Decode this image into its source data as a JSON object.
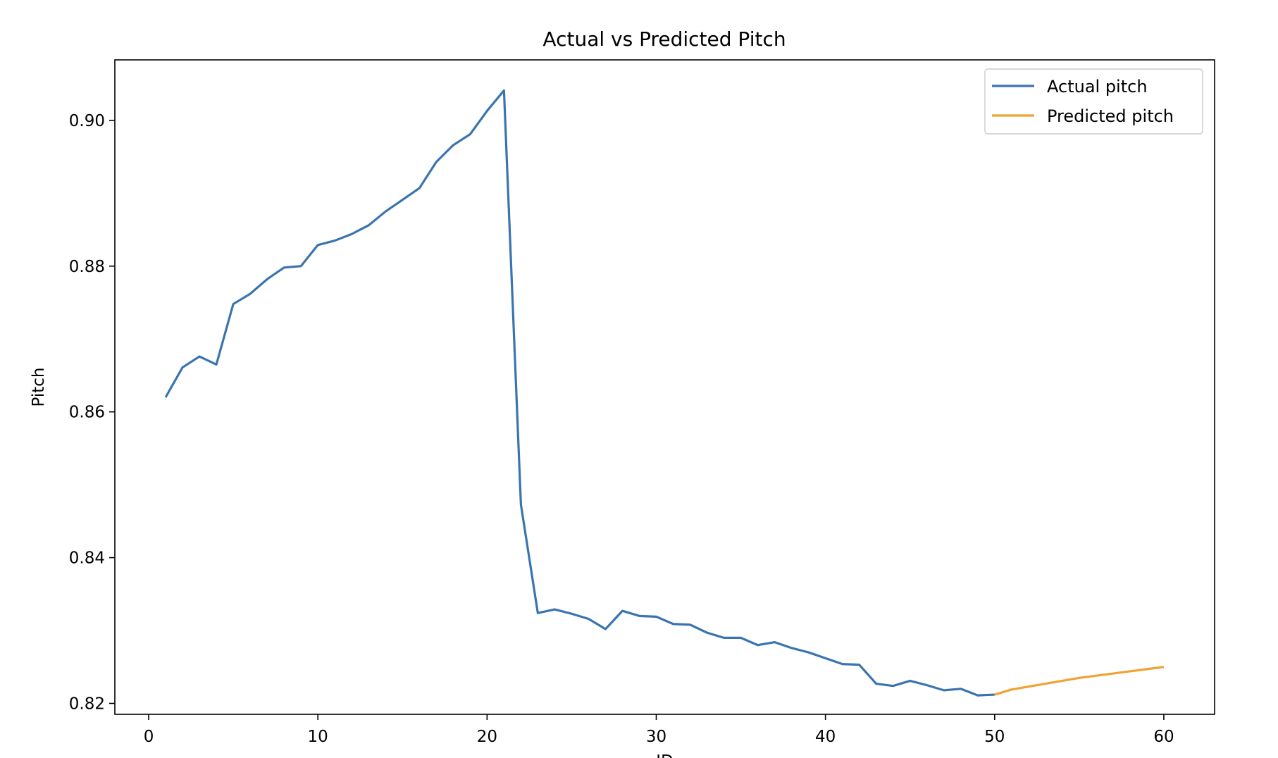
{
  "chart_data": {
    "type": "line",
    "title": "Actual vs Predicted Pitch",
    "xlabel": "ID",
    "ylabel": "Pitch",
    "xlim": [
      -2,
      63
    ],
    "ylim": [
      0.8185,
      0.9083
    ],
    "xticks": [
      0,
      10,
      20,
      30,
      40,
      50,
      60
    ],
    "yticks": [
      0.82,
      0.84,
      0.86,
      0.88,
      0.9
    ],
    "ytick_labels": [
      "0.82",
      "0.84",
      "0.86",
      "0.88",
      "0.90"
    ],
    "grid": false,
    "legend_position": "upper right",
    "series": [
      {
        "name": "Actual pitch",
        "color": "#3a74b0",
        "x": [
          1,
          2,
          3,
          4,
          5,
          6,
          7,
          8,
          9,
          10,
          11,
          12,
          13,
          14,
          15,
          16,
          17,
          18,
          19,
          20,
          21,
          22,
          23,
          24,
          25,
          26,
          27,
          28,
          29,
          30,
          31,
          32,
          33,
          34,
          35,
          36,
          37,
          38,
          39,
          40,
          41,
          42,
          43,
          44,
          45,
          46,
          47,
          48,
          49,
          50
        ],
        "y": [
          0.862,
          0.8661,
          0.8676,
          0.8665,
          0.8748,
          0.8762,
          0.8782,
          0.8798,
          0.88,
          0.8829,
          0.8835,
          0.8844,
          0.8856,
          0.8875,
          0.8891,
          0.8907,
          0.8943,
          0.8966,
          0.8981,
          0.9013,
          0.9041,
          0.8473,
          0.8324,
          0.8329,
          0.8323,
          0.8316,
          0.8302,
          0.8327,
          0.832,
          0.8319,
          0.8309,
          0.8308,
          0.8297,
          0.829,
          0.829,
          0.828,
          0.8284,
          0.8276,
          0.827,
          0.8262,
          0.8254,
          0.8253,
          0.8227,
          0.8224,
          0.8231,
          0.8225,
          0.8218,
          0.822,
          0.8211,
          0.8212
        ]
      },
      {
        "name": "Predicted pitch",
        "color": "#f0a232",
        "x": [
          50,
          51,
          52,
          53,
          54,
          55,
          56,
          57,
          58,
          59,
          60
        ],
        "y": [
          0.8212,
          0.8219,
          0.8223,
          0.8227,
          0.8231,
          0.8235,
          0.8238,
          0.8241,
          0.8244,
          0.8247,
          0.825
        ]
      }
    ]
  }
}
